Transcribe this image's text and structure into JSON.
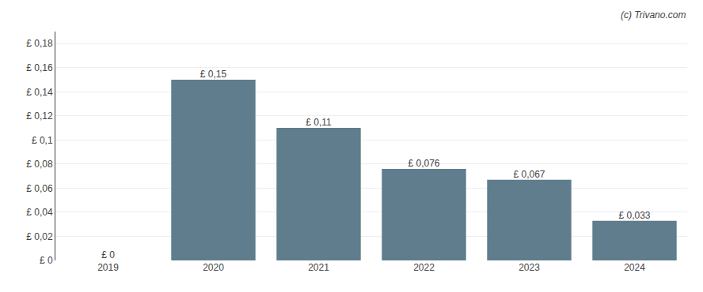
{
  "chart_data": {
    "type": "bar",
    "categories": [
      "2019",
      "2020",
      "2021",
      "2022",
      "2023",
      "2024"
    ],
    "values": [
      0,
      0.15,
      0.11,
      0.076,
      0.067,
      0.033
    ],
    "value_labels": [
      "£ 0",
      "£ 0,15",
      "£ 0,11",
      "£ 0,076",
      "£ 0,067",
      "£ 0,033"
    ],
    "data_labels": true,
    "color": "#5f7d8c",
    "ylim": [
      0,
      0.19
    ],
    "yticks": [
      {
        "value": 0,
        "label": "£ 0"
      },
      {
        "value": 0.02,
        "label": "£ 0,02"
      },
      {
        "value": 0.04,
        "label": "£ 0,04"
      },
      {
        "value": 0.06,
        "label": "£ 0,06"
      },
      {
        "value": 0.08,
        "label": "£ 0,08"
      },
      {
        "value": 0.1,
        "label": "£ 0,1"
      },
      {
        "value": 0.12,
        "label": "£ 0,12"
      },
      {
        "value": 0.14,
        "label": "£ 0,14"
      },
      {
        "value": 0.16,
        "label": "£ 0,16"
      },
      {
        "value": 0.18,
        "label": "£ 0,18"
      }
    ],
    "grid": true,
    "annotations": [
      "(c) Trivano.com"
    ]
  }
}
